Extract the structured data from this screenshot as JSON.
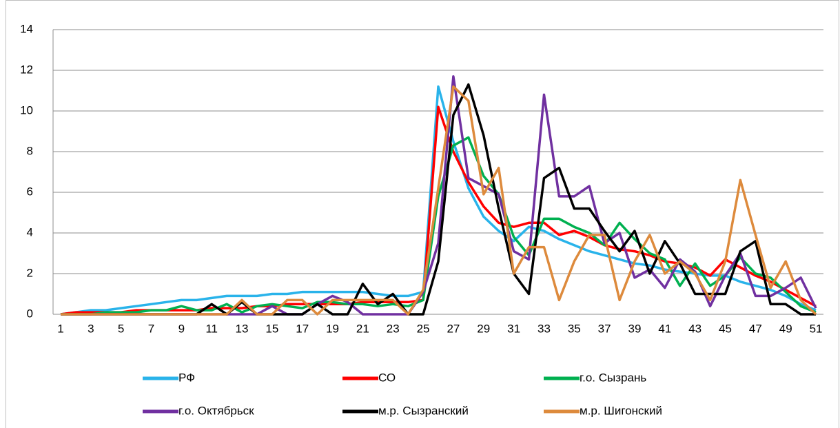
{
  "chart_data": {
    "type": "line",
    "categories": [
      1,
      null,
      3,
      null,
      5,
      null,
      7,
      null,
      9,
      null,
      11,
      null,
      13,
      null,
      15,
      null,
      17,
      null,
      19,
      null,
      21,
      null,
      23,
      null,
      25,
      null,
      27,
      null,
      29,
      null,
      31,
      null,
      33,
      null,
      35,
      null,
      37,
      null,
      39,
      null,
      41,
      null,
      43,
      null,
      45,
      null,
      47,
      null,
      49,
      null,
      51
    ],
    "ylim": [
      0,
      14
    ],
    "yticks": [
      0,
      2,
      4,
      6,
      8,
      10,
      12,
      14
    ],
    "grid": true,
    "legend": "bottom",
    "series": [
      {
        "name": "РФ",
        "color": "#29b3ea",
        "values": [
          0,
          0.1,
          0.2,
          0.2,
          0.3,
          0.4,
          0.5,
          0.6,
          0.7,
          0.7,
          0.8,
          0.9,
          0.9,
          0.9,
          1.0,
          1.0,
          1.1,
          1.1,
          1.1,
          1.1,
          1.1,
          1.0,
          0.9,
          0.9,
          1.1,
          11.2,
          8.5,
          6.2,
          4.8,
          4.1,
          3.6,
          4.3,
          4.1,
          3.7,
          3.4,
          3.1,
          2.9,
          2.7,
          2.5,
          2.4,
          2.2,
          2.1,
          2.0,
          1.9,
          1.9,
          1.6,
          1.4,
          1.2,
          0.9,
          0.5,
          0.2
        ]
      },
      {
        "name": "СО",
        "color": "#ff0000",
        "values": [
          0,
          0.1,
          0.1,
          0.1,
          0.1,
          0.2,
          0.2,
          0.2,
          0.2,
          0.2,
          0.3,
          0.3,
          0.3,
          0.4,
          0.4,
          0.5,
          0.5,
          0.5,
          0.5,
          0.5,
          0.6,
          0.6,
          0.6,
          0.6,
          0.7,
          10.2,
          8.0,
          6.5,
          5.3,
          4.5,
          4.3,
          4.5,
          4.5,
          3.9,
          4.1,
          3.8,
          3.4,
          3.2,
          3.1,
          2.9,
          2.6,
          2.5,
          2.3,
          1.9,
          2.7,
          2.3,
          1.9,
          1.6,
          1.2,
          0.8,
          0.4
        ]
      },
      {
        "name": "г.о. Сызрань",
        "color": "#00b050",
        "values": [
          0,
          0,
          0,
          0.1,
          0.1,
          0.1,
          0.2,
          0.2,
          0.4,
          0.2,
          0.2,
          0.5,
          0.1,
          0.4,
          0.5,
          0.4,
          0.3,
          0.6,
          0.6,
          0.5,
          0.5,
          0.4,
          0.5,
          0.4,
          0.7,
          5.8,
          8.3,
          8.7,
          6.8,
          5.9,
          3.8,
          2.9,
          4.7,
          4.7,
          4.3,
          4.0,
          3.4,
          4.5,
          3.7,
          3.0,
          2.7,
          1.4,
          2.5,
          1.4,
          1.9,
          2.8,
          2.0,
          1.8,
          1.1,
          0.4,
          0.1
        ]
      },
      {
        "name": "г.о. Октябрьск",
        "color": "#7030a0",
        "values": [
          0,
          0,
          0,
          0,
          0,
          0,
          0,
          0,
          0,
          0,
          0,
          0,
          0,
          0,
          0.4,
          0,
          0,
          0.5,
          0.9,
          0.6,
          0,
          0,
          0,
          0,
          1.1,
          3.5,
          11.7,
          6.7,
          6.3,
          5.9,
          3.1,
          2.7,
          10.8,
          5.8,
          5.8,
          6.3,
          3.5,
          4.0,
          1.8,
          2.2,
          1.3,
          2.7,
          2.1,
          0.4,
          1.9,
          3.0,
          0.9,
          0.9,
          1.3,
          1.8,
          0.3
        ]
      },
      {
        "name": "м.р. Сызранский",
        "color": "#000000",
        "values": [
          0,
          0,
          0,
          0,
          0,
          0,
          0,
          0,
          0,
          0,
          0.5,
          0,
          0.6,
          0,
          0,
          0,
          0,
          0.5,
          0,
          0,
          1.5,
          0.5,
          1.0,
          0,
          0,
          2.6,
          9.8,
          11.3,
          8.8,
          5.2,
          2.0,
          1.0,
          6.7,
          7.2,
          5.2,
          5.2,
          4.1,
          3.1,
          4.1,
          2.0,
          3.6,
          2.5,
          1.0,
          1.0,
          1.0,
          3.1,
          3.6,
          0.5,
          0.5,
          0,
          0
        ]
      },
      {
        "name": "м.р. Шигонский",
        "color": "#dd8a3c",
        "values": [
          0,
          0,
          0,
          0,
          0,
          0,
          0,
          0,
          0,
          0,
          0,
          0,
          0.7,
          0,
          0,
          0.7,
          0.7,
          0,
          0.7,
          0.7,
          0.7,
          0.7,
          0.7,
          0,
          1.2,
          6.2,
          11.2,
          10.5,
          5.9,
          7.2,
          2.0,
          3.3,
          3.3,
          0.7,
          2.6,
          3.9,
          3.9,
          0.7,
          2.6,
          3.9,
          2.0,
          2.6,
          2.0,
          0.7,
          2.6,
          6.6,
          3.9,
          1.3,
          2.6,
          0.7,
          0
        ]
      }
    ]
  }
}
